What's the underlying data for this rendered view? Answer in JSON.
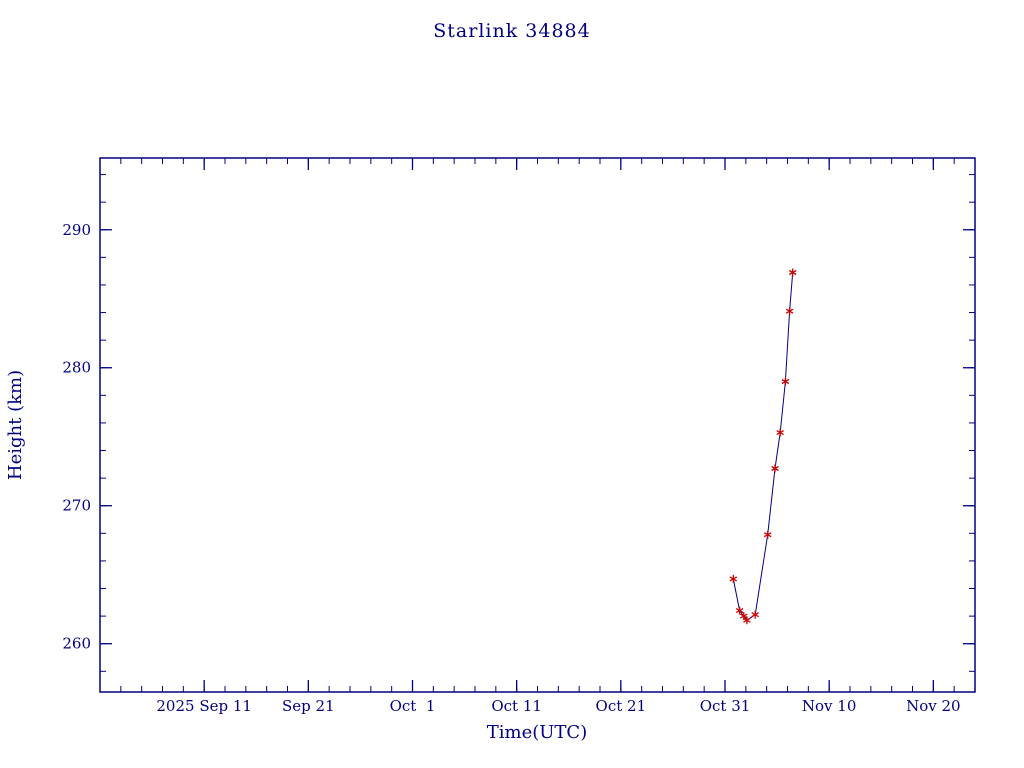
{
  "page": {
    "background_color": "#ffffff"
  },
  "chart_data": {
    "type": "line",
    "title": "Starlink 34884",
    "xlabel": "Time(UTC)",
    "ylabel": "Height (km)",
    "axis_color": "#000080",
    "line_color": "#000080",
    "marker": "asterisk",
    "marker_color": "#cc0000",
    "grid": false,
    "legend": "none",
    "x_axis": {
      "unit": "days since 2025 Sep 1",
      "range": [
        0,
        84
      ],
      "minor_tick_step": 2,
      "major_ticks": [
        {
          "day": 10,
          "label": "2025 Sep 11"
        },
        {
          "day": 20,
          "label": "Sep 21"
        },
        {
          "day": 30,
          "label": "Oct  1"
        },
        {
          "day": 40,
          "label": "Oct 11"
        },
        {
          "day": 50,
          "label": "Oct 21"
        },
        {
          "day": 60,
          "label": "Oct 31"
        },
        {
          "day": 70,
          "label": "Nov 10"
        },
        {
          "day": 80,
          "label": "Nov 20"
        }
      ]
    },
    "y_axis": {
      "range": [
        256.5,
        295.2
      ],
      "minor_tick_step": 2,
      "major_ticks": [
        260,
        270,
        280,
        290
      ]
    },
    "series": [
      {
        "name": "Starlink 34884 height",
        "points": [
          {
            "date": "2025 Oct 31",
            "day": 60.8,
            "height_km": 264.7
          },
          {
            "date": "2025 Nov 1",
            "day": 61.4,
            "height_km": 262.4
          },
          {
            "date": "2025 Nov 1",
            "day": 61.8,
            "height_km": 262.0
          },
          {
            "date": "2025 Nov 2",
            "day": 62.1,
            "height_km": 261.7
          },
          {
            "date": "2025 Nov 2",
            "day": 62.9,
            "height_km": 262.1
          },
          {
            "date": "2025 Nov 4",
            "day": 64.1,
            "height_km": 267.9
          },
          {
            "date": "2025 Nov 4",
            "day": 64.8,
            "height_km": 272.7
          },
          {
            "date": "2025 Nov 5",
            "day": 65.3,
            "height_km": 275.3
          },
          {
            "date": "2025 Nov 5",
            "day": 65.8,
            "height_km": 279.0
          },
          {
            "date": "2025 Nov 6",
            "day": 66.2,
            "height_km": 284.1
          },
          {
            "date": "2025 Nov 6",
            "day": 66.5,
            "height_km": 286.9
          }
        ]
      }
    ]
  }
}
